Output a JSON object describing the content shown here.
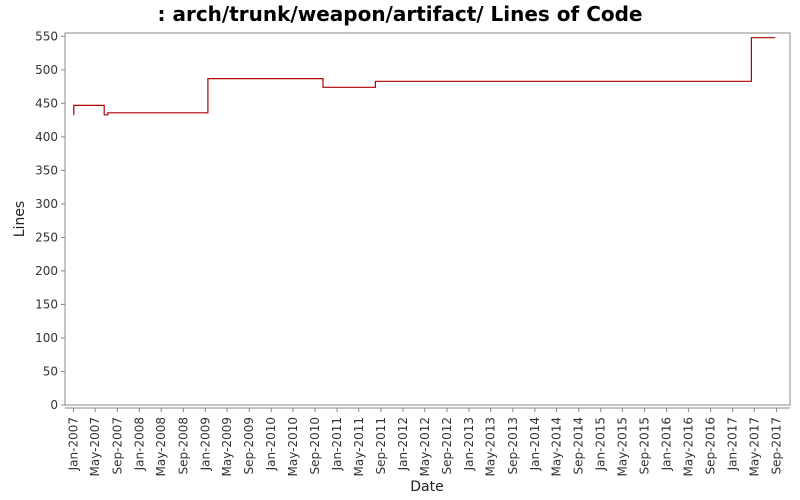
{
  "chart_data": {
    "type": "line",
    "title": ": arch/trunk/weapon/artifact/ Lines of Code",
    "xlabel": "Date",
    "ylabel": "Lines",
    "ylim": [
      0,
      555
    ],
    "yticks": [
      0,
      50,
      100,
      150,
      200,
      250,
      300,
      350,
      400,
      450,
      500,
      550
    ],
    "xlim": [
      "2006-11-15",
      "2017-11-15"
    ],
    "xticks": [
      "Jan-2007",
      "May-2007",
      "Sep-2007",
      "Jan-2008",
      "May-2008",
      "Sep-2008",
      "Jan-2009",
      "May-2009",
      "Sep-2009",
      "Jan-2010",
      "May-2010",
      "Sep-2010",
      "Jan-2011",
      "May-2011",
      "Sep-2011",
      "Jan-2012",
      "May-2012",
      "Sep-2012",
      "Jan-2013",
      "May-2013",
      "Sep-2013",
      "Jan-2014",
      "May-2014",
      "Sep-2014",
      "Jan-2015",
      "May-2015",
      "Sep-2015",
      "Jan-2016",
      "May-2016",
      "Sep-2016",
      "Jan-2017",
      "May-2017",
      "Sep-2017"
    ],
    "xtick_dates": [
      "2007-01-01",
      "2007-05-01",
      "2007-09-01",
      "2008-01-01",
      "2008-05-01",
      "2008-09-01",
      "2009-01-01",
      "2009-05-01",
      "2009-09-01",
      "2010-01-01",
      "2010-05-01",
      "2010-09-01",
      "2011-01-01",
      "2011-05-01",
      "2011-09-01",
      "2012-01-01",
      "2012-05-01",
      "2012-09-01",
      "2013-01-01",
      "2013-05-01",
      "2013-09-01",
      "2014-01-01",
      "2014-05-01",
      "2014-09-01",
      "2015-01-01",
      "2015-05-01",
      "2015-09-01",
      "2016-01-01",
      "2016-05-01",
      "2016-09-01",
      "2017-01-01",
      "2017-05-01",
      "2017-09-01"
    ],
    "grid": false,
    "series": [
      {
        "color": "#b00000",
        "step": true,
        "points": [
          {
            "x": "2007-01-01",
            "y": 433
          },
          {
            "x": "2007-01-03",
            "y": 447
          },
          {
            "x": "2007-06-20",
            "y": 433
          },
          {
            "x": "2007-07-10",
            "y": 436
          },
          {
            "x": "2009-01-15",
            "y": 487
          },
          {
            "x": "2010-10-15",
            "y": 474
          },
          {
            "x": "2011-08-01",
            "y": 483
          },
          {
            "x": "2017-04-15",
            "y": 548
          },
          {
            "x": "2017-08-25",
            "y": 548
          }
        ]
      }
    ]
  }
}
